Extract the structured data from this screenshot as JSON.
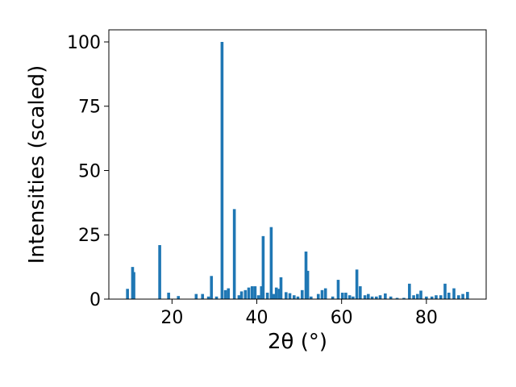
{
  "chart_data": {
    "type": "bar",
    "x_label": "2θ (°)",
    "y_label": "Intensities (scaled)",
    "color": "#1f77b4",
    "x": [
      9.5,
      10.7,
      11.0,
      17.1,
      19.2,
      21.5,
      25.7,
      27.2,
      28.6,
      29.3,
      30.5,
      31.8,
      32.6,
      33.3,
      34.7,
      35.8,
      36.4,
      37.3,
      38.1,
      38.9,
      39.6,
      40.4,
      41.1,
      41.5,
      42.5,
      43.4,
      44.0,
      44.6,
      45.3,
      45.7,
      46.9,
      47.8,
      48.8,
      49.7,
      50.7,
      51.6,
      52.0,
      52.8,
      54.5,
      55.4,
      56.2,
      57.9,
      59.2,
      60.2,
      61.0,
      61.9,
      62.7,
      63.6,
      64.4,
      65.5,
      66.3,
      67.2,
      68.2,
      69.1,
      70.3,
      71.6,
      73.1,
      74.7,
      76.0,
      77.0,
      77.9,
      78.7,
      80.0,
      81.3,
      82.3,
      83.4,
      84.4,
      85.3,
      86.5,
      87.6,
      88.6,
      89.7
    ],
    "values": [
      4,
      12.5,
      10.5,
      21,
      2.5,
      1.2,
      2,
      2,
      1,
      9,
      1,
      100,
      3.5,
      4.2,
      35,
      1.5,
      3,
      3.5,
      4.5,
      5,
      5,
      1.5,
      5,
      24.5,
      2.5,
      28,
      2,
      4.5,
      4,
      8.5,
      2.7,
      2.3,
      1.5,
      1,
      3.5,
      18.5,
      11,
      1,
      2,
      3.5,
      4.2,
      1,
      7.5,
      2.5,
      2.5,
      1.5,
      1,
      11.5,
      5,
      1.5,
      2,
      1,
      1,
      1.5,
      2.2,
      1,
      0.5,
      0.5,
      6,
      1.5,
      2,
      3.3,
      1,
      1,
      1.5,
      1.5,
      6,
      2.5,
      4.2,
      1.5,
      2,
      2.8
    ],
    "xlim": [
      5.1,
      94.1
    ],
    "ylim": [
      0,
      104.7
    ],
    "xticks": [
      20,
      40,
      60,
      80
    ],
    "yticks": [
      0,
      25,
      50,
      75,
      100
    ]
  }
}
